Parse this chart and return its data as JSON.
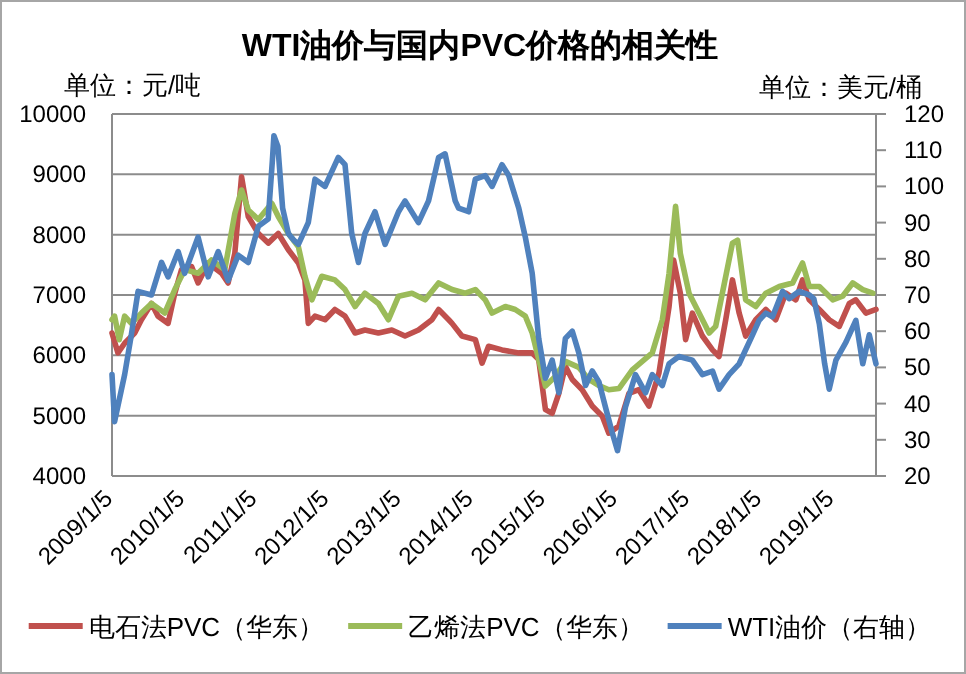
{
  "chart_data": {
    "type": "line",
    "title": "WTI油价与国内PVC价格的相关性",
    "ylabel": "单位：元/吨",
    "y2label": "单位：美元/桶",
    "xlim": [
      "2009-01-05",
      "2019-08-10"
    ],
    "xticks": [
      {
        "value": "2009-01-05",
        "label": "2009/1/5"
      },
      {
        "value": "2010-01-05",
        "label": "2010/1/5"
      },
      {
        "value": "2011-01-05",
        "label": "2011/1/5"
      },
      {
        "value": "2012-01-05",
        "label": "2012/1/5"
      },
      {
        "value": "2013-01-05",
        "label": "2013/1/5"
      },
      {
        "value": "2014-01-05",
        "label": "2014/1/5"
      },
      {
        "value": "2015-01-05",
        "label": "2015/1/5"
      },
      {
        "value": "2016-01-05",
        "label": "2016/1/5"
      },
      {
        "value": "2017-01-05",
        "label": "2017/1/5"
      },
      {
        "value": "2018-01-05",
        "label": "2018/1/5"
      },
      {
        "value": "2019-01-05",
        "label": "2019/1/5"
      }
    ],
    "ylim": [
      4000,
      10000
    ],
    "yticks": [
      4000,
      5000,
      6000,
      7000,
      8000,
      9000,
      10000
    ],
    "y2lim": [
      20,
      120
    ],
    "y2ticks": [
      20,
      30,
      40,
      50,
      60,
      70,
      80,
      90,
      100,
      110,
      120
    ],
    "grid": "y",
    "legend": "bottom",
    "series": [
      {
        "name": "电石法PVC（华东）",
        "color": "#c0504d",
        "x": [
          "2009-01-05",
          "2009-02-04",
          "2009-03-10",
          "2009-04-30",
          "2009-06-03",
          "2009-07-24",
          "2009-08-26",
          "2009-10-16",
          "2009-11-19",
          "2009-12-23",
          "2010-02-12",
          "2010-03-17",
          "2010-05-07",
          "2010-07-14",
          "2010-08-16",
          "2010-09-19",
          "2010-10-23",
          "2010-11-26",
          "2011-01-16",
          "2011-03-07",
          "2011-04-27",
          "2011-06-17",
          "2011-08-07",
          "2011-09-09",
          "2011-09-26",
          "2011-10-30",
          "2011-12-20",
          "2012-02-08",
          "2012-03-30",
          "2012-05-20",
          "2012-07-09",
          "2012-09-15",
          "2012-11-22",
          "2013-01-28",
          "2013-04-06",
          "2013-06-13",
          "2013-07-17",
          "2013-09-06",
          "2013-09-23",
          "2013-11-12",
          "2014-01-19",
          "2014-02-22",
          "2014-03-27",
          "2014-06-03",
          "2014-08-27",
          "2014-11-03",
          "2014-12-06",
          "2015-01-09",
          "2015-02-12",
          "2015-03-18",
          "2015-04-20",
          "2015-05-25",
          "2015-07-14",
          "2015-09-03",
          "2015-10-24",
          "2015-11-26",
          "2016-01-16",
          "2016-03-07",
          "2016-04-26",
          "2016-06-16",
          "2016-08-06",
          "2016-09-26",
          "2016-10-19",
          "2016-11-22",
          "2016-12-19",
          "2017-01-22",
          "2017-03-14",
          "2017-05-04",
          "2017-06-06",
          "2017-07-10",
          "2017-08-13",
          "2017-09-16",
          "2017-10-19",
          "2017-12-09",
          "2018-01-29",
          "2018-03-20",
          "2018-05-10",
          "2018-06-30",
          "2018-08-03",
          "2018-09-06",
          "2018-10-27",
          "2018-12-16",
          "2019-02-05",
          "2019-03-28",
          "2019-04-30",
          "2019-06-20",
          "2019-08-10"
        ],
        "values": [
          6370,
          6040,
          6200,
          6370,
          6590,
          6860,
          6650,
          6530,
          7030,
          7420,
          7470,
          7200,
          7530,
          7360,
          7200,
          7690,
          8960,
          8300,
          8020,
          7860,
          8020,
          7750,
          7530,
          7250,
          6530,
          6650,
          6590,
          6760,
          6650,
          6370,
          6420,
          6370,
          6420,
          6320,
          6420,
          6590,
          6760,
          6590,
          6530,
          6320,
          6260,
          5870,
          6150,
          6090,
          6040,
          6040,
          5930,
          5100,
          5040,
          5370,
          5820,
          5600,
          5430,
          5160,
          4990,
          4710,
          4830,
          5370,
          5430,
          5160,
          5710,
          6810,
          7580,
          7030,
          6260,
          6700,
          6320,
          6090,
          5980,
          6590,
          7250,
          6700,
          6320,
          6590,
          6760,
          6590,
          7030,
          6920,
          7250,
          6920,
          6760,
          6590,
          6480,
          6860,
          6920,
          6700,
          6760
        ]
      },
      {
        "name": "乙烯法PVC（华东）",
        "color": "#9bbb59",
        "x": [
          "2009-01-05",
          "2009-01-18",
          "2009-02-11",
          "2009-03-10",
          "2009-04-13",
          "2009-06-03",
          "2009-07-24",
          "2009-09-29",
          "2009-11-19",
          "2010-01-08",
          "2010-03-17",
          "2010-05-24",
          "2010-07-30",
          "2010-09-19",
          "2010-10-23",
          "2010-11-26",
          "2011-01-16",
          "2011-03-25",
          "2011-04-27",
          "2011-06-17",
          "2011-08-07",
          "2011-09-09",
          "2011-10-14",
          "2011-12-03",
          "2012-02-08",
          "2012-03-30",
          "2012-05-20",
          "2012-07-09",
          "2012-09-15",
          "2012-11-05",
          "2012-12-26",
          "2013-03-04",
          "2013-05-10",
          "2013-07-17",
          "2013-09-23",
          "2013-11-29",
          "2014-01-19",
          "2014-03-10",
          "2014-04-14",
          "2014-06-20",
          "2014-08-09",
          "2014-09-29",
          "2014-11-03",
          "2014-12-06",
          "2015-01-09",
          "2015-02-28",
          "2015-04-20",
          "2015-06-27",
          "2015-08-17",
          "2015-10-07",
          "2015-11-26",
          "2016-01-16",
          "2016-03-24",
          "2016-07-03",
          "2016-08-23",
          "2016-09-26",
          "2016-10-29",
          "2016-11-22",
          "2017-01-05",
          "2017-02-25",
          "2017-04-17",
          "2017-05-20",
          "2017-06-23",
          "2017-08-13",
          "2017-09-08",
          "2017-10-19",
          "2017-12-09",
          "2018-01-29",
          "2018-04-07",
          "2018-06-14",
          "2018-08-03",
          "2018-09-06",
          "2018-10-27",
          "2019-01-03",
          "2019-02-22",
          "2019-04-14",
          "2019-06-04",
          "2019-07-25"
        ],
        "values": [
          6590,
          6650,
          6260,
          6650,
          6530,
          6700,
          6860,
          6700,
          7090,
          7420,
          7360,
          7580,
          7420,
          8350,
          8740,
          8410,
          8250,
          8520,
          8300,
          8020,
          7800,
          7310,
          6920,
          7310,
          7250,
          7090,
          6810,
          7030,
          6860,
          6590,
          6980,
          7030,
          6920,
          7200,
          7090,
          7030,
          7090,
          6920,
          6700,
          6810,
          6760,
          6650,
          6370,
          5930,
          5490,
          5650,
          5900,
          5800,
          5600,
          5500,
          5430,
          5450,
          5760,
          6040,
          6590,
          7360,
          8470,
          7690,
          7030,
          6700,
          6370,
          6480,
          7030,
          7860,
          7910,
          6920,
          6810,
          7030,
          7140,
          7200,
          7530,
          7140,
          7140,
          6920,
          6980,
          7200,
          7090,
          7030
        ]
      },
      {
        "name": "WTI油价（右轴）",
        "color": "#4f81bd",
        "axis": "y2",
        "x": [
          "2009-01-05",
          "2009-01-18",
          "2009-03-10",
          "2009-04-13",
          "2009-05-17",
          "2009-07-24",
          "2009-09-13",
          "2009-10-16",
          "2009-12-06",
          "2010-01-08",
          "2010-03-17",
          "2010-05-07",
          "2010-06-27",
          "2010-08-16",
          "2010-10-06",
          "2010-11-26",
          "2011-01-16",
          "2011-03-07",
          "2011-03-28",
          "2011-04-05",
          "2011-04-25",
          "2011-05-19",
          "2011-06-17",
          "2011-07-17",
          "2011-08-07",
          "2011-09-26",
          "2011-10-30",
          "2011-12-20",
          "2012-02-25",
          "2012-03-30",
          "2012-05-03",
          "2012-06-06",
          "2012-07-09",
          "2012-08-29",
          "2012-10-19",
          "2012-12-26",
          "2013-01-28",
          "2013-04-06",
          "2013-05-27",
          "2013-07-17",
          "2013-08-19",
          "2013-10-09",
          "2013-10-26",
          "2013-12-16",
          "2014-01-19",
          "2014-03-10",
          "2014-04-14",
          "2014-06-03",
          "2014-07-07",
          "2014-08-27",
          "2014-09-29",
          "2014-11-03",
          "2014-12-06",
          "2015-01-09",
          "2015-02-12",
          "2015-03-18",
          "2015-04-20",
          "2015-05-25",
          "2015-06-27",
          "2015-07-31",
          "2015-09-03",
          "2015-10-07",
          "2015-11-09",
          "2015-12-13",
          "2016-01-09",
          "2016-02-18",
          "2016-04-09",
          "2016-05-30",
          "2016-07-03",
          "2016-08-23",
          "2016-09-26",
          "2016-11-15",
          "2017-01-22",
          "2017-03-14",
          "2017-05-04",
          "2017-06-06",
          "2017-07-27",
          "2017-09-16",
          "2017-11-23",
          "2017-12-26",
          "2018-01-29",
          "2018-03-04",
          "2018-04-24",
          "2018-05-27",
          "2018-07-17",
          "2018-09-06",
          "2018-09-29",
          "2018-10-27",
          "2018-11-23",
          "2018-12-16",
          "2019-01-19",
          "2019-03-11",
          "2019-04-30",
          "2019-06-04",
          "2019-07-07",
          "2019-08-10"
        ],
        "values": [
          48,
          35,
          48,
          59,
          71,
          70,
          79,
          75,
          82,
          76,
          86,
          75,
          82,
          74,
          81,
          79,
          89,
          91,
          107,
          114,
          111,
          94,
          87,
          85,
          84,
          90,
          102,
          100,
          108,
          106,
          87,
          79,
          87,
          93,
          84,
          93,
          96,
          90,
          96,
          108,
          109,
          96,
          94,
          93,
          102,
          103,
          100,
          106,
          103,
          94,
          86,
          76,
          58,
          47,
          52,
          43,
          58,
          60,
          54,
          45,
          49,
          46,
          39,
          32,
          27,
          39,
          48,
          43,
          48,
          45,
          51,
          53,
          52,
          48,
          49,
          44,
          48,
          51,
          59,
          63,
          65,
          64,
          71,
          69,
          71,
          70,
          69,
          62,
          51,
          44,
          52,
          57,
          63,
          51,
          59,
          51
        ]
      }
    ]
  }
}
